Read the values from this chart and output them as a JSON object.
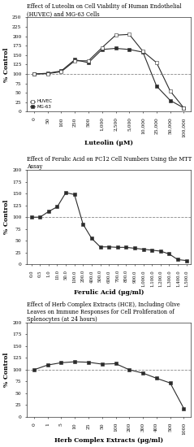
{
  "chart1": {
    "title": "Effect of Luteolin on Cell Viability of Human Endothelial\n(HUVEC) and MG-63 Cells",
    "xlabel": "Luteolin (μM)",
    "ylabel": "% Control",
    "ylim": [
      0,
      250
    ],
    "yticks": [
      0,
      25,
      50,
      75,
      100,
      125,
      150,
      175,
      200,
      225,
      250
    ],
    "xtick_labels": [
      "0",
      "50",
      "100",
      "250",
      "500",
      "1,000",
      "2,500",
      "5,000",
      "10,000",
      "25,000",
      "50,000",
      "100,000"
    ],
    "huvec_y": [
      100,
      101,
      106,
      135,
      135,
      170,
      203,
      205,
      160,
      130,
      55,
      10
    ],
    "mg63_y": [
      100,
      102,
      108,
      138,
      130,
      165,
      168,
      165,
      158,
      68,
      30,
      10
    ],
    "legend": [
      "HUVEC",
      "MG-63"
    ]
  },
  "chart2": {
    "title": "Effect of Ferulic Acid on PC12 Cell Numbers Using the MTT\nAssay",
    "xlabel": "Ferulic Acid (μg/ml)",
    "ylabel": "% Control",
    "ylim": [
      0,
      200
    ],
    "yticks": [
      0,
      25,
      50,
      75,
      100,
      125,
      150,
      175,
      200
    ],
    "xtick_labels": [
      "0.0",
      "0.5",
      "1.0",
      "10.0",
      "50.0",
      "100.0",
      "200.0",
      "400.0",
      "500.0",
      "600.0",
      "700.0",
      "800.0",
      "900.0",
      "1,000.0",
      "1,100.0",
      "1,200.0",
      "1,300.0",
      "1,400.0",
      "1,500.0"
    ],
    "y": [
      100,
      100,
      112,
      122,
      152,
      148,
      85,
      55,
      37,
      37,
      36,
      36,
      34,
      32,
      30,
      28,
      22,
      10,
      8
    ]
  },
  "chart3": {
    "title": "Effect of Herb Complex Extracts (HCE), Including Olive\nLeaves on Immune Responses for Cell Proliferation of\nSplenocytes (at 24 hours)",
    "xlabel": "Herb Complex Extracts (μg/ml)",
    "ylabel": "% Control",
    "ylim": [
      0,
      200
    ],
    "yticks": [
      0,
      25,
      50,
      75,
      100,
      125,
      150,
      175,
      200
    ],
    "xtick_labels": [
      "0",
      "1",
      "5",
      "10",
      "25",
      "50",
      "100",
      "200",
      "300",
      "400",
      "500",
      "1000"
    ],
    "y": [
      100,
      110,
      115,
      117,
      116,
      112,
      113,
      100,
      93,
      82,
      72,
      18
    ]
  },
  "bg_color": "#ffffff",
  "line_color": "#2b2b2b",
  "dashed_color": "#888888",
  "marker": "s",
  "marker_size": 2.5,
  "title_font_size": 4.8,
  "label_font_size": 5.5,
  "tick_font_size": 4.2
}
